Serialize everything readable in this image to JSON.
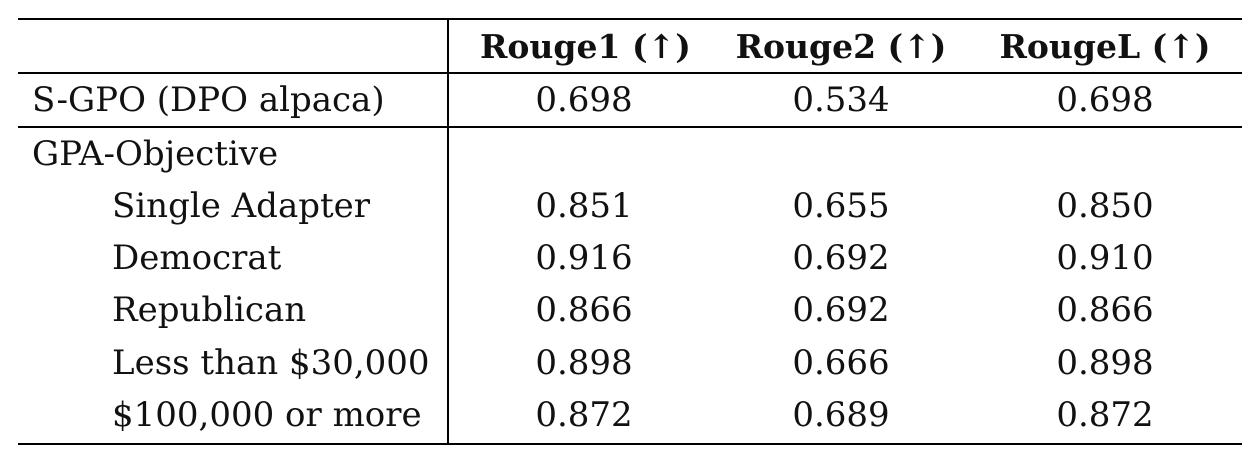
{
  "table": {
    "headers": [
      "Rouge1 (↑)",
      "Rouge2 (↑)",
      "RougeL (↑)"
    ],
    "baseline": {
      "label": "S-GPO (DPO alpaca)",
      "values": [
        "0.698",
        "0.534",
        "0.698"
      ]
    },
    "group_label": "GPA-Objective",
    "rows": [
      {
        "label": "Single Adapter",
        "values": [
          "0.851",
          "0.655",
          "0.850"
        ]
      },
      {
        "label": "Democrat",
        "values": [
          "0.916",
          "0.692",
          "0.910"
        ]
      },
      {
        "label": "Republican",
        "values": [
          "0.866",
          "0.692",
          "0.866"
        ]
      },
      {
        "label": "Less than $30,000",
        "values": [
          "0.898",
          "0.666",
          "0.898"
        ]
      },
      {
        "label": "$100,000 or more",
        "values": [
          "0.872",
          "0.689",
          "0.872"
        ]
      }
    ]
  }
}
